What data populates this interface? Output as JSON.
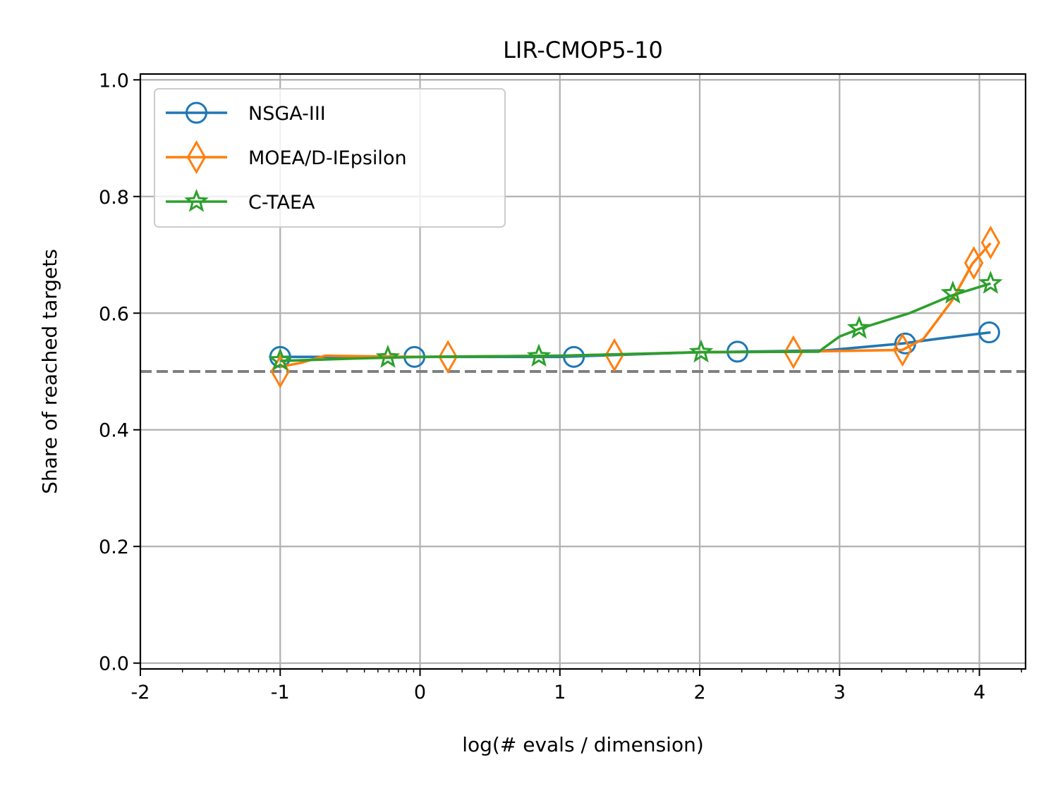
{
  "chart_data": {
    "type": "line",
    "title": "LIR-CMOP5-10",
    "xlabel": "log(# evals / dimension)",
    "ylabel": "Share of reached targets",
    "xlim": [
      -2,
      4.33
    ],
    "ylim": [
      -0.01,
      1.01
    ],
    "x_ticks": [
      -2,
      -1,
      0,
      1,
      2,
      3,
      4
    ],
    "x_tick_labels": [
      "-2",
      "-1",
      "0",
      "1",
      "2",
      "3",
      "4"
    ],
    "y_ticks": [
      0.0,
      0.2,
      0.4,
      0.6,
      0.8,
      1.0
    ],
    "y_tick_labels": [
      "0.0",
      "0.2",
      "0.4",
      "0.6",
      "0.8",
      "1.0"
    ],
    "grid": true,
    "legend_position": "upper-left",
    "reference_line": {
      "y": 0.5,
      "style": "dashed",
      "color": "#808080"
    },
    "series": [
      {
        "name": "NSGA-III",
        "color": "#1f77b4",
        "marker": "circle",
        "line": [
          [
            -1.0,
            0.525
          ],
          [
            -0.7,
            0.525
          ],
          [
            0.0,
            0.525
          ],
          [
            1.0,
            0.525
          ],
          [
            2.0,
            0.533
          ],
          [
            2.9,
            0.536
          ],
          [
            3.45,
            0.548
          ],
          [
            3.7,
            0.556
          ],
          [
            4.08,
            0.567
          ]
        ],
        "markers": [
          [
            -1.0,
            0.525
          ],
          [
            -0.04,
            0.525
          ],
          [
            1.1,
            0.525
          ],
          [
            2.27,
            0.534
          ],
          [
            3.47,
            0.548
          ],
          [
            4.07,
            0.567
          ]
        ]
      },
      {
        "name": "MOEA/D-IEpsilon",
        "color": "#ff7f0e",
        "marker": "thin_diamond",
        "line": [
          [
            -1.0,
            0.508
          ],
          [
            -0.85,
            0.515
          ],
          [
            -0.68,
            0.527
          ],
          [
            0.0,
            0.525
          ],
          [
            1.0,
            0.527
          ],
          [
            2.0,
            0.533
          ],
          [
            2.7,
            0.534
          ],
          [
            3.45,
            0.537
          ],
          [
            3.6,
            0.556
          ],
          [
            3.8,
            0.62
          ],
          [
            3.95,
            0.685
          ],
          [
            4.08,
            0.72
          ]
        ],
        "markers": [
          [
            -1.0,
            0.5
          ],
          [
            0.2,
            0.525
          ],
          [
            1.39,
            0.528
          ],
          [
            2.67,
            0.533
          ],
          [
            3.45,
            0.537
          ],
          [
            3.96,
            0.686
          ],
          [
            4.08,
            0.721
          ]
        ]
      },
      {
        "name": "C-TAEA",
        "color": "#2ca02c",
        "marker": "star",
        "line": [
          [
            -1.0,
            0.518
          ],
          [
            -0.5,
            0.522
          ],
          [
            0.0,
            0.525
          ],
          [
            1.0,
            0.527
          ],
          [
            2.0,
            0.533
          ],
          [
            2.85,
            0.534
          ],
          [
            3.0,
            0.56
          ],
          [
            3.15,
            0.574
          ],
          [
            3.5,
            0.6
          ],
          [
            3.8,
            0.63
          ],
          [
            4.08,
            0.651
          ]
        ],
        "markers": [
          [
            -1.0,
            0.519
          ],
          [
            -0.23,
            0.524
          ],
          [
            0.85,
            0.526
          ],
          [
            2.01,
            0.533
          ],
          [
            3.14,
            0.574
          ],
          [
            3.81,
            0.634
          ],
          [
            4.08,
            0.651
          ]
        ]
      }
    ]
  }
}
